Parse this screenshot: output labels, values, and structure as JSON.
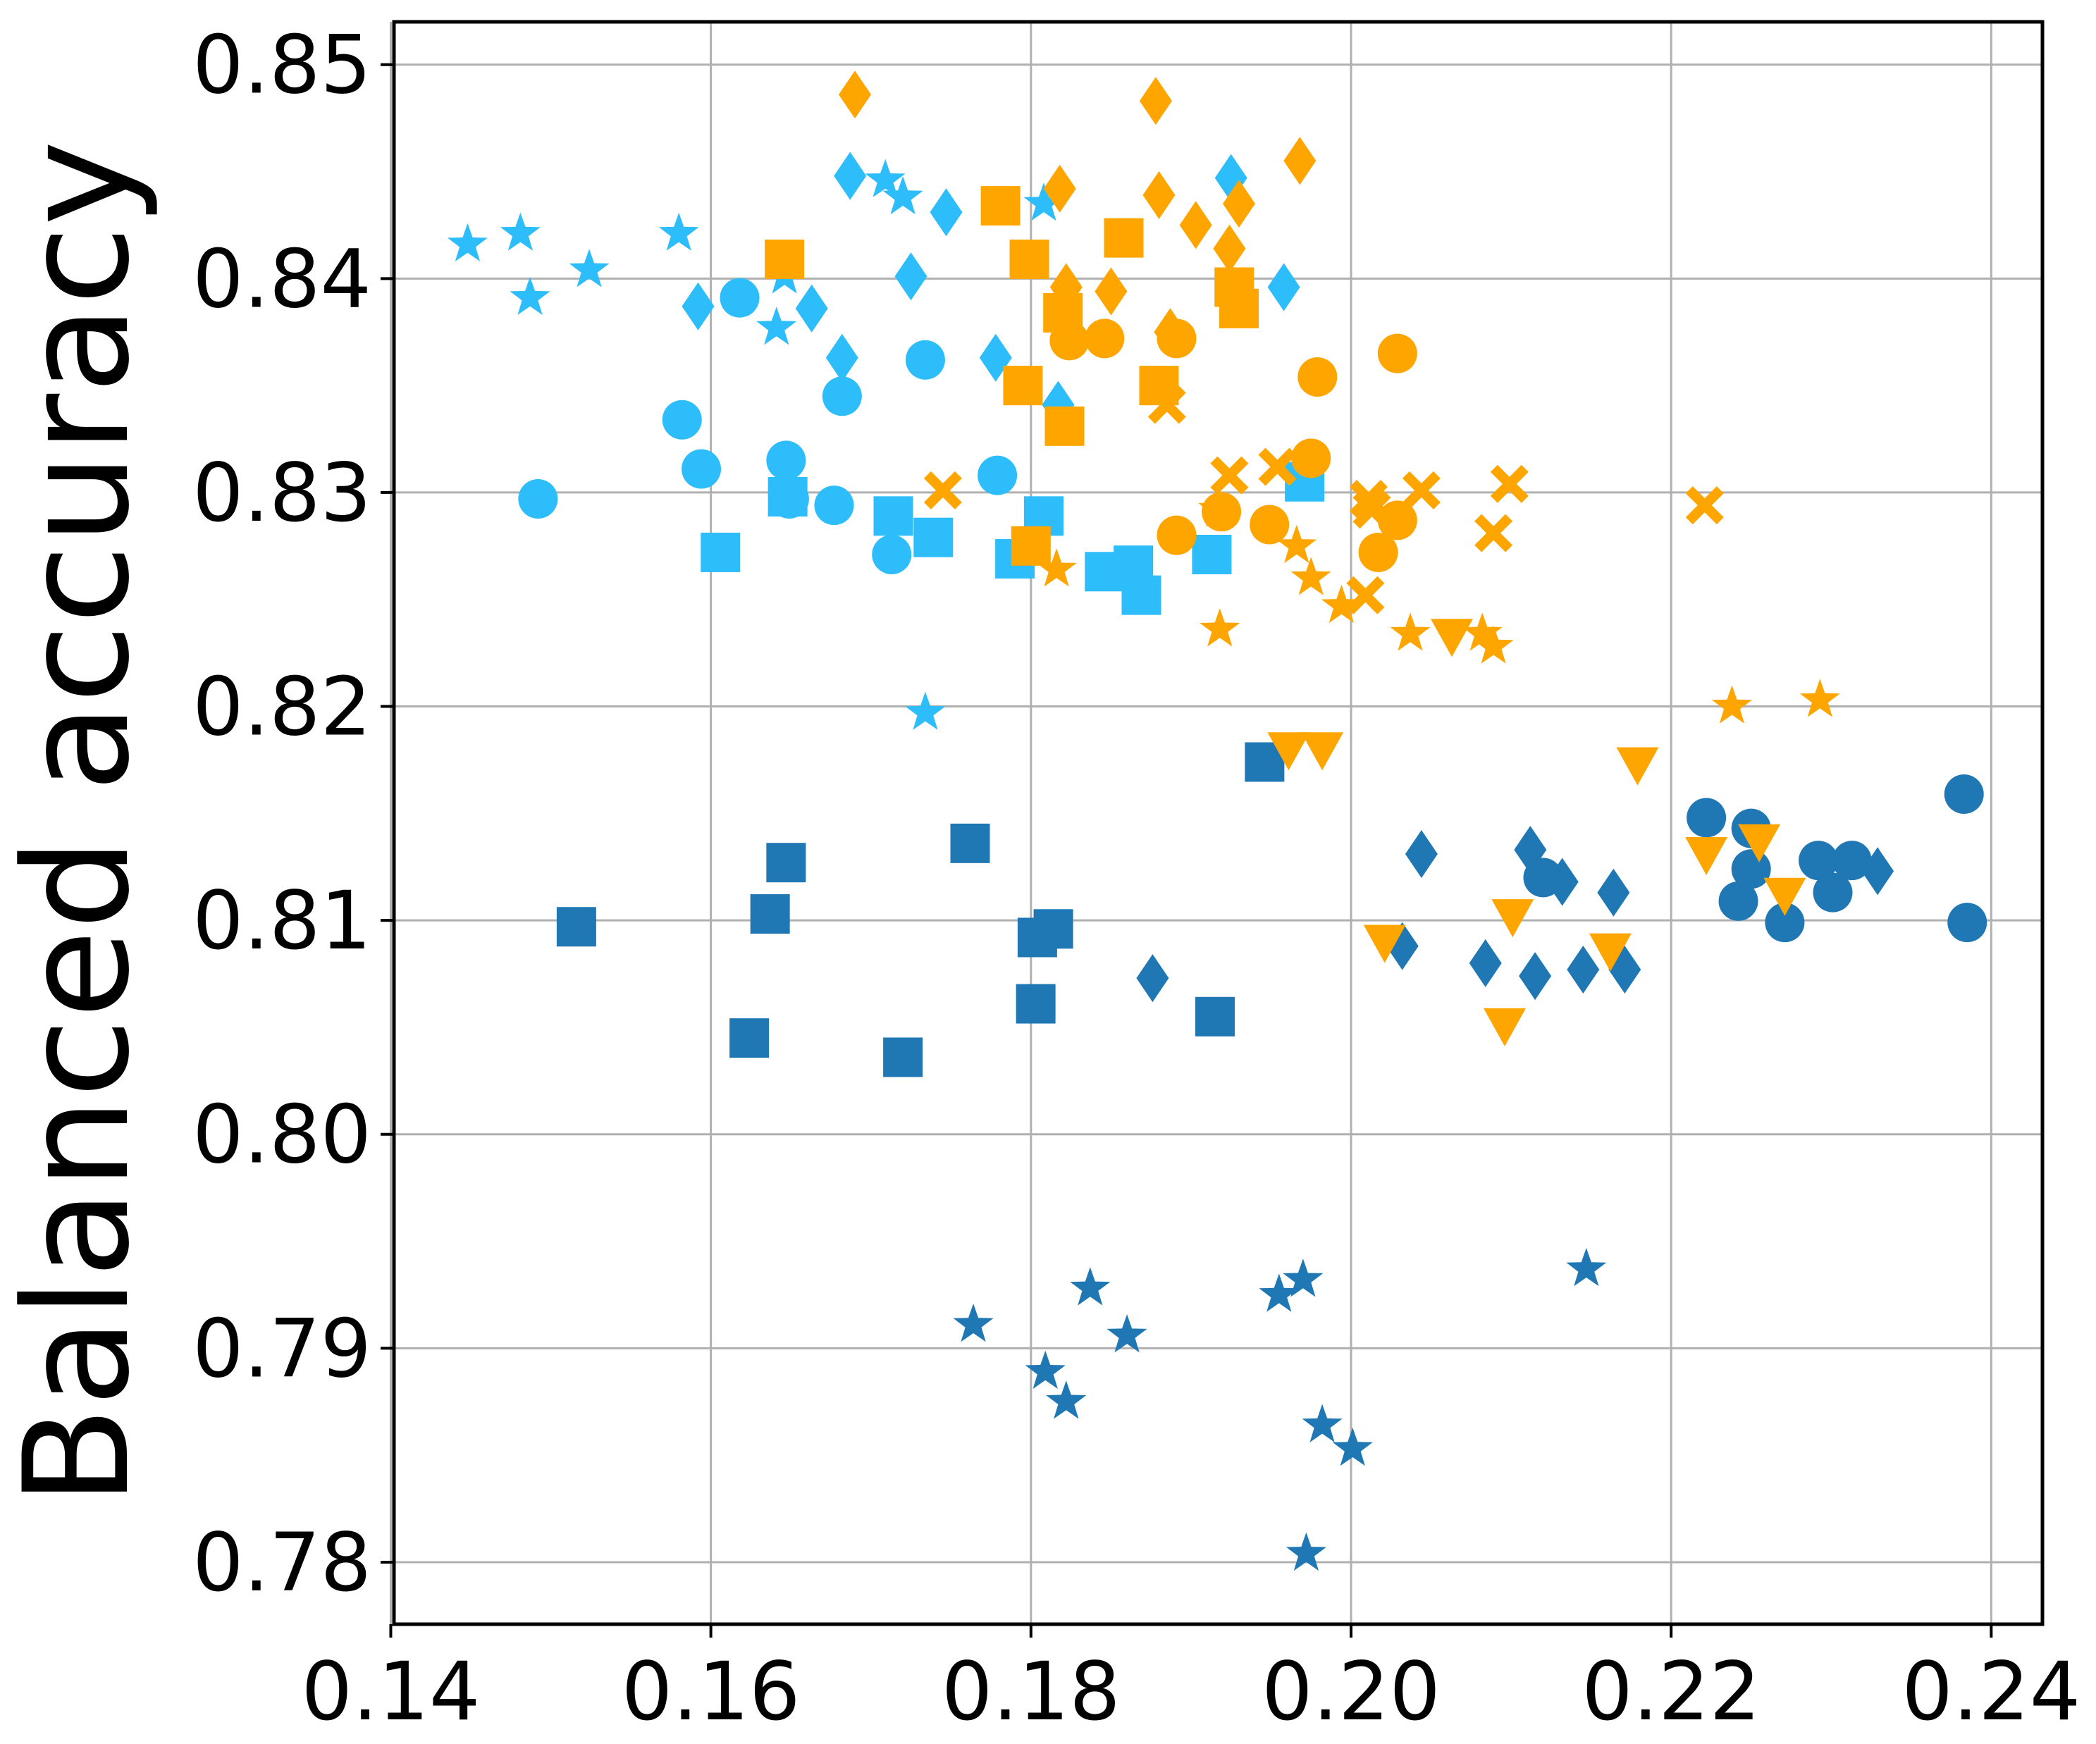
{
  "chart_data": {
    "type": "scatter",
    "ylabel": "Balanced accuracy",
    "xlim": [
      0.1402,
      0.2432
    ],
    "ylim": [
      0.7771,
      0.852
    ],
    "xticks": [
      0.14,
      0.16,
      0.18,
      {
        "value": 0.2,
        "label": "0.20"
      },
      0.22,
      0.24
    ],
    "yticks": [
      0.85,
      0.84,
      0.83,
      0.82,
      0.81,
      {
        "value": 0.8,
        "label": "0.80"
      },
      0.79,
      0.78
    ],
    "grid": true,
    "series": [
      {
        "color": "#1f77b4",
        "marker": "star",
        "x": [
          0.1764,
          0.1809,
          0.1822,
          0.1837,
          0.186,
          0.1955,
          0.197,
          0.1982,
          0.2001,
          0.1972,
          0.2147
        ],
        "values": [
          0.7911,
          0.7889,
          0.7875,
          0.7928,
          0.7906,
          0.7925,
          0.7932,
          0.7864,
          0.7853,
          0.7804,
          0.7937
        ]
      },
      {
        "color": "#1f77b4",
        "marker": "square",
        "x": [
          0.1516,
          0.1637,
          0.1647,
          0.1624,
          0.172,
          0.1762,
          0.1804,
          0.1814,
          0.1803,
          0.1915,
          0.1946
        ],
        "values": [
          0.8097,
          0.8103,
          0.8127,
          0.8045,
          0.8036,
          0.8136,
          0.8092,
          0.8096,
          0.8061,
          0.8055,
          0.8174
        ]
      },
      {
        "color": "#1f77b4",
        "marker": "diamond",
        "x": [
          0.1876,
          0.2032,
          0.2044,
          0.2084,
          0.2112,
          0.2115,
          0.2132,
          0.2145,
          0.2164,
          0.2171,
          0.2329
        ],
        "values": [
          0.8073,
          0.8088,
          0.8131,
          0.808,
          0.8133,
          0.8074,
          0.8118,
          0.8077,
          0.8113,
          0.8077,
          0.8123
        ]
      },
      {
        "color": "#1f77b4",
        "marker": "circle",
        "x": [
          0.2222,
          0.2242,
          0.225,
          0.225,
          0.2271,
          0.2292,
          0.2301,
          0.2313,
          0.2383,
          0.2385,
          0.212
        ],
        "values": [
          0.8148,
          0.8109,
          0.8143,
          0.8124,
          0.8099,
          0.8128,
          0.8113,
          0.8128,
          0.8159,
          0.8099,
          0.812
        ]
      },
      {
        "color": "#2dbdfa",
        "marker": "star",
        "x": [
          0.1448,
          0.1481,
          0.1487,
          0.1524,
          0.158,
          0.1641,
          0.1646,
          0.1709,
          0.172,
          0.1808,
          0.1734
        ],
        "values": [
          0.8416,
          0.8421,
          0.8391,
          0.8404,
          0.8421,
          0.8377,
          0.8401,
          0.8446,
          0.8438,
          0.8435,
          0.8197
        ]
      },
      {
        "color": "#2dbdfa",
        "marker": "circle",
        "x": [
          0.1492,
          0.1582,
          0.1594,
          0.1618,
          0.1647,
          0.1649,
          0.1677,
          0.1682,
          0.1713,
          0.1734,
          0.1779
        ],
        "values": [
          0.8297,
          0.8334,
          0.8311,
          0.8391,
          0.8315,
          0.8297,
          0.8294,
          0.8345,
          0.8271,
          0.8362,
          0.8308
        ]
      },
      {
        "color": "#2dbdfa",
        "marker": "square",
        "x": [
          0.1606,
          0.1648,
          0.1714,
          0.1739,
          0.179,
          0.1808,
          0.1846,
          0.1864,
          0.1869,
          0.1913,
          0.1971
        ],
        "values": [
          0.8272,
          0.8298,
          0.8289,
          0.8279,
          0.8269,
          0.8289,
          0.8263,
          0.8266,
          0.8252,
          0.8271,
          0.8305
        ]
      },
      {
        "color": "#2dbdfa",
        "marker": "diamond",
        "x": [
          0.1592,
          0.1663,
          0.1682,
          0.1687,
          0.1725,
          0.1747,
          0.1778,
          0.1817,
          0.1925,
          0.1958
        ],
        "values": [
          0.8387,
          0.8386,
          0.8363,
          0.8448,
          0.8401,
          0.8431,
          0.8363,
          0.8341,
          0.8447,
          0.8396
        ]
      },
      {
        "color": "#ffa500",
        "marker": "diamond",
        "x": [
          0.169,
          0.1818,
          0.1822,
          0.185,
          0.1878,
          0.188,
          0.1887,
          0.1903,
          0.1924,
          0.193,
          0.1968
        ],
        "values": [
          0.8486,
          0.8442,
          0.8396,
          0.8394,
          0.8483,
          0.8439,
          0.8375,
          0.8425,
          0.8414,
          0.8435,
          0.8455
        ]
      },
      {
        "color": "#ffa500",
        "marker": "square",
        "x": [
          0.1646,
          0.1781,
          0.1799,
          0.1795,
          0.182,
          0.1821,
          0.1858,
          0.188,
          0.1927,
          0.193,
          0.18
        ],
        "values": [
          0.8409,
          0.8434,
          0.8409,
          0.835,
          0.8384,
          0.8331,
          0.8419,
          0.835,
          0.8396,
          0.8386,
          0.8275
        ]
      },
      {
        "color": "#ffa500",
        "marker": "circle",
        "x": [
          0.1824,
          0.1846,
          0.1891,
          0.1891,
          0.1919,
          0.1949,
          0.1975,
          0.1979,
          0.2017,
          0.2029,
          0.2029
        ],
        "values": [
          0.8371,
          0.8372,
          0.8372,
          0.828,
          0.8291,
          0.8285,
          0.8316,
          0.8354,
          0.8272,
          0.8287,
          0.8365
        ]
      },
      {
        "color": "#ffa500",
        "marker": "x",
        "x": [
          0.1745,
          0.1885,
          0.1924,
          0.1954,
          0.2011,
          0.2009,
          0.2044,
          0.2089,
          0.2099,
          0.2221,
          0.2013
        ],
        "values": [
          0.8301,
          0.8341,
          0.8308,
          0.8312,
          0.8297,
          0.8252,
          0.8301,
          0.8281,
          0.8304,
          0.8294,
          0.8292
        ]
      },
      {
        "color": "#ffa500",
        "marker": "star",
        "x": [
          0.1816,
          0.1918,
          0.1966,
          0.1975,
          0.1994,
          0.2037,
          0.2082,
          0.2089,
          0.2238,
          0.2293,
          0.1917
        ],
        "values": [
          0.8264,
          0.8236,
          0.8275,
          0.826,
          0.8247,
          0.8234,
          0.8234,
          0.8228,
          0.82,
          0.8203,
          0.8292
        ]
      },
      {
        "color": "#ffa500",
        "marker": "triangle-down",
        "x": [
          0.1961,
          0.1982,
          0.2021,
          0.2063,
          0.2096,
          0.2101,
          0.2162,
          0.2179,
          0.2222,
          0.2255,
          0.2271
        ],
        "values": [
          0.818,
          0.818,
          0.809,
          0.8233,
          0.8051,
          0.8102,
          0.8086,
          0.8173,
          0.8131,
          0.8137,
          0.8112
        ]
      }
    ]
  }
}
